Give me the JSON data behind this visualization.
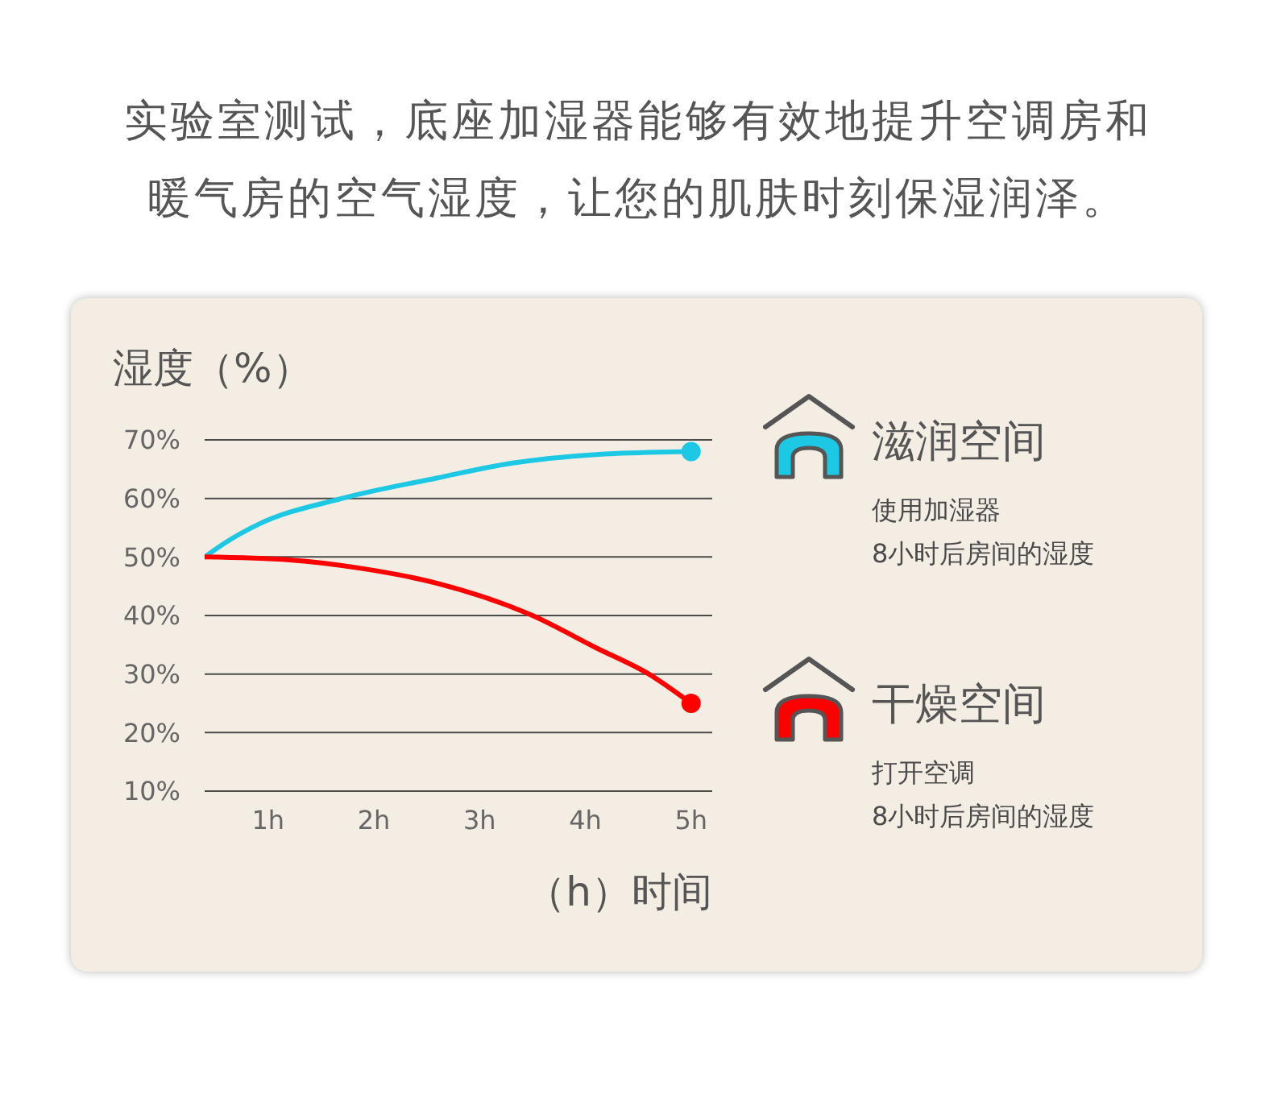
{
  "chart_data": {
    "type": "line",
    "title": "实验室测试，底座加湿器能够有效地提升空调房和暖气房的空气湿度，让您的肌肤时刻保湿润泽。",
    "ylabel": "湿度（%）",
    "xlabel": "（h）时间",
    "xlim": [
      0.4,
      5.2
    ],
    "xticks": [
      {
        "value": 1,
        "label": "1h"
      },
      {
        "value": 2,
        "label": "2h"
      },
      {
        "value": 3,
        "label": "3h"
      },
      {
        "value": 4,
        "label": "4h"
      },
      {
        "value": 5,
        "label": "5h"
      }
    ],
    "ylim": [
      10,
      70
    ],
    "yticks": [
      {
        "value": 10,
        "label": "10%"
      },
      {
        "value": 20,
        "label": "20%"
      },
      {
        "value": 30,
        "label": "30%"
      },
      {
        "value": 40,
        "label": "40%"
      },
      {
        "value": 50,
        "label": "50%"
      },
      {
        "value": 60,
        "label": "60%"
      },
      {
        "value": 70,
        "label": "70%"
      }
    ],
    "grid": "y",
    "legend": "right",
    "annotations": [
      "使用加湿器\n8小时后房间的湿度",
      "打开空调\n8小时后房间的湿度"
    ],
    "series": [
      {
        "name": "滋润空间",
        "color": "#1cc8e3",
        "x": [
          0.4,
          0.6,
          0.9,
          1.7,
          2.6,
          3.3,
          4.1,
          5
        ],
        "values": [
          50,
          52.5,
          55.5,
          60,
          63.5,
          66,
          67.5,
          68
        ]
      },
      {
        "name": "干燥空间",
        "color": "#ff0000",
        "x": [
          0.4,
          1.2,
          1.9,
          2.6,
          3.5,
          4.1,
          4.6,
          5
        ],
        "values": [
          50,
          49.5,
          48,
          45.5,
          40,
          34.5,
          30,
          25
        ]
      },
      {
        "type": "scatter",
        "color": "#1cc8e3",
        "x": [
          5
        ],
        "values": [
          68
        ]
      },
      {
        "type": "scatter",
        "color": "#ff0000",
        "x": [
          5
        ],
        "values": [
          25
        ]
      }
    ]
  }
}
